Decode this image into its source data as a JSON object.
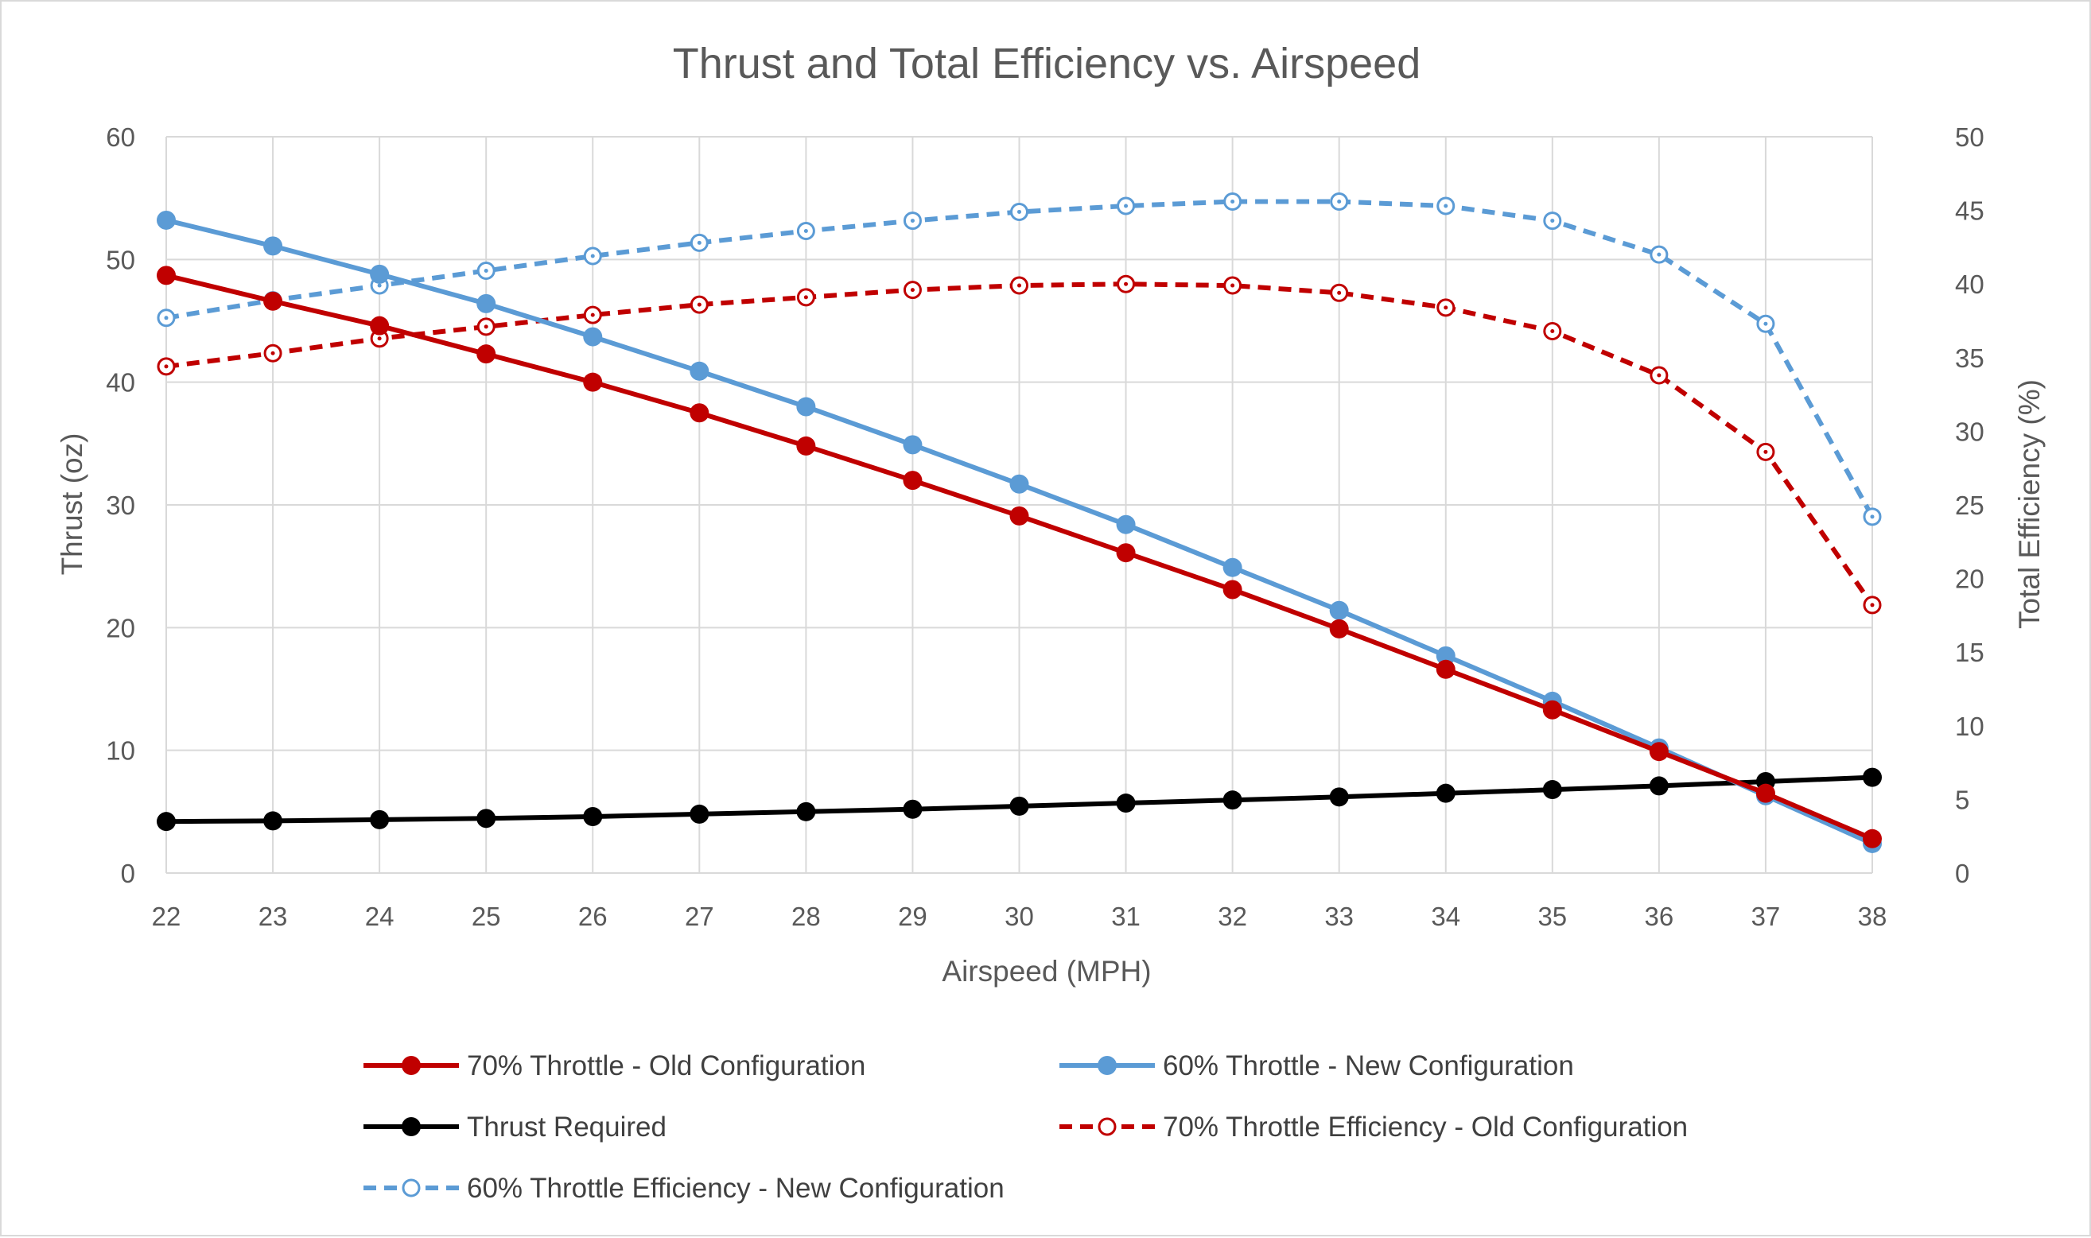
{
  "chart_data": {
    "type": "line",
    "title": "Thrust and Total Efficiency vs. Airspeed",
    "xlabel": "Airspeed (MPH)",
    "ylabel": "Thrust (oz)",
    "y2label": "Total Efficiency (%)",
    "x": [
      22,
      23,
      24,
      25,
      26,
      27,
      28,
      29,
      30,
      31,
      32,
      33,
      34,
      35,
      36,
      37,
      38
    ],
    "xlim": [
      22,
      38
    ],
    "ylim": [
      0,
      60
    ],
    "y2lim": [
      0,
      50
    ],
    "yticks": [
      0,
      10,
      20,
      30,
      40,
      50,
      60
    ],
    "y2ticks": [
      0,
      5,
      10,
      15,
      20,
      25,
      30,
      35,
      40,
      45,
      50
    ],
    "grid": true,
    "legend_position": "bottom",
    "series": [
      {
        "name": "70% Throttle - Old Configuration",
        "axis": "left",
        "color": "#c00000",
        "style": "solid",
        "marker": "filled-circle",
        "values": [
          48.7,
          46.6,
          44.6,
          42.3,
          40.0,
          37.5,
          34.8,
          32.0,
          29.1,
          26.1,
          23.1,
          19.9,
          16.6,
          13.3,
          9.9,
          6.5,
          2.8
        ]
      },
      {
        "name": "60% Throttle - New Configuration",
        "axis": "left",
        "color": "#5b9bd5",
        "style": "solid",
        "marker": "filled-circle",
        "values": [
          53.2,
          51.1,
          48.8,
          46.4,
          43.7,
          40.9,
          38.0,
          34.9,
          31.7,
          28.4,
          24.9,
          21.4,
          17.7,
          14.0,
          10.2,
          6.3,
          2.4
        ]
      },
      {
        "name": "Thrust Required",
        "axis": "left",
        "color": "#000000",
        "style": "solid",
        "marker": "filled-circle",
        "values": [
          4.2,
          4.25,
          4.35,
          4.45,
          4.6,
          4.8,
          5.0,
          5.2,
          5.45,
          5.7,
          5.95,
          6.2,
          6.5,
          6.8,
          7.1,
          7.45,
          7.8
        ]
      },
      {
        "name": "70% Throttle Efficiency - Old Configuration",
        "axis": "right",
        "color": "#c00000",
        "style": "dashed",
        "marker": "open-circle",
        "values": [
          34.4,
          35.3,
          36.3,
          37.1,
          37.9,
          38.6,
          39.1,
          39.6,
          39.9,
          40.0,
          39.9,
          39.4,
          38.4,
          36.8,
          33.8,
          28.6,
          18.2
        ]
      },
      {
        "name": "60% Throttle Efficiency - New Configuration",
        "axis": "right",
        "color": "#5b9bd5",
        "style": "dashed",
        "marker": "open-circle",
        "values": [
          37.7,
          38.9,
          39.9,
          40.9,
          41.9,
          42.8,
          43.6,
          44.3,
          44.9,
          45.3,
          45.6,
          45.6,
          45.3,
          44.3,
          42.0,
          37.3,
          24.2
        ]
      }
    ]
  }
}
